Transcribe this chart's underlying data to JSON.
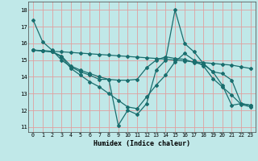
{
  "xlabel": "Humidex (Indice chaleur)",
  "bg_color": "#c0e8e8",
  "grid_color": "#e0a0a0",
  "line_color": "#1a6e6e",
  "xlim": [
    -0.5,
    23.5
  ],
  "ylim": [
    10.7,
    18.5
  ],
  "xticks": [
    0,
    1,
    2,
    3,
    4,
    5,
    6,
    7,
    8,
    9,
    10,
    11,
    12,
    13,
    14,
    15,
    16,
    17,
    18,
    19,
    20,
    21,
    22,
    23
  ],
  "yticks": [
    11,
    12,
    13,
    14,
    15,
    16,
    17,
    18
  ],
  "lines": [
    {
      "x": [
        0,
        1,
        2,
        3,
        4,
        5,
        6,
        7,
        8,
        9,
        10,
        11,
        12,
        13,
        14,
        15,
        16,
        17,
        18,
        19,
        20,
        21,
        22,
        23
      ],
      "y": [
        17.4,
        16.1,
        15.6,
        15.0,
        14.6,
        14.3,
        14.1,
        13.85,
        13.85,
        11.1,
        12.0,
        11.75,
        12.4,
        14.4,
        15.0,
        18.0,
        16.0,
        15.5,
        14.8,
        14.3,
        13.5,
        12.3,
        12.4,
        12.3
      ]
    },
    {
      "x": [
        0,
        1,
        2,
        3,
        4,
        5,
        6,
        7,
        8,
        9,
        10,
        11,
        12,
        13,
        14,
        15,
        16,
        17,
        18,
        19,
        20,
        21,
        22,
        23
      ],
      "y": [
        15.6,
        15.57,
        15.53,
        15.5,
        15.46,
        15.42,
        15.38,
        15.34,
        15.3,
        15.26,
        15.22,
        15.18,
        15.14,
        15.1,
        15.06,
        15.0,
        14.95,
        14.9,
        14.85,
        14.8,
        14.75,
        14.7,
        14.6,
        14.5
      ]
    },
    {
      "x": [
        0,
        1,
        2,
        3,
        4,
        5,
        6,
        7,
        8,
        9,
        10,
        11,
        12,
        13,
        14,
        15,
        16,
        17,
        18,
        19,
        20,
        21,
        22,
        23
      ],
      "y": [
        15.6,
        15.55,
        15.5,
        15.25,
        14.65,
        14.4,
        14.2,
        14.0,
        13.85,
        13.8,
        13.8,
        13.85,
        14.55,
        15.0,
        15.2,
        15.1,
        15.05,
        14.85,
        14.75,
        14.3,
        14.2,
        13.8,
        12.4,
        12.3
      ]
    },
    {
      "x": [
        0,
        1,
        2,
        3,
        4,
        5,
        6,
        7,
        8,
        9,
        10,
        11,
        12,
        13,
        14,
        15,
        16,
        17,
        18,
        19,
        20,
        21,
        22,
        23
      ],
      "y": [
        15.6,
        15.55,
        15.5,
        15.2,
        14.5,
        14.1,
        13.7,
        13.4,
        13.0,
        12.6,
        12.2,
        12.1,
        12.8,
        13.5,
        14.1,
        14.9,
        15.4,
        15.0,
        14.65,
        13.9,
        13.4,
        12.9,
        12.35,
        12.2
      ]
    }
  ]
}
